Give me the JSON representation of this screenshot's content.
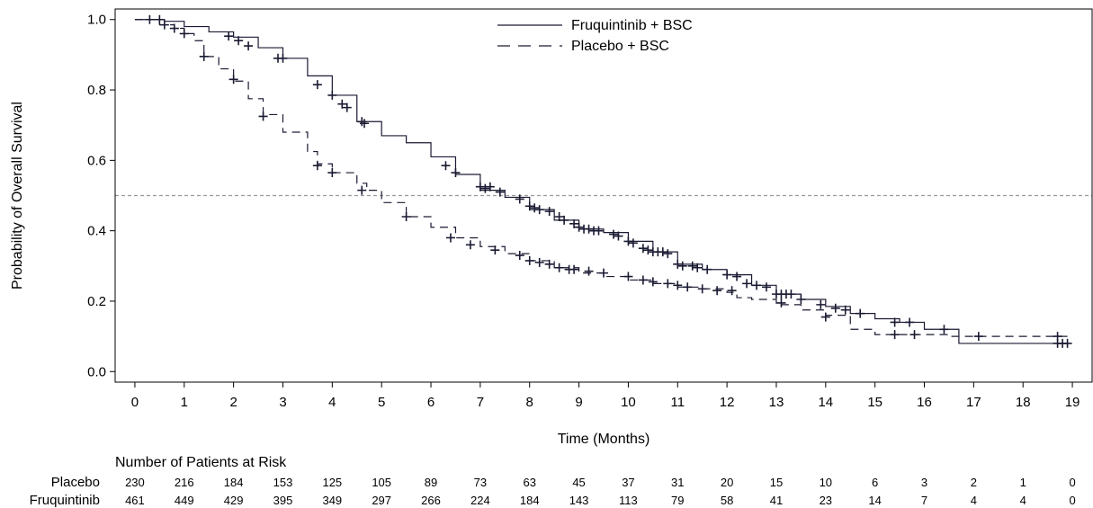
{
  "chart_data": {
    "type": "line",
    "subtype": "kaplan-meier",
    "title": "",
    "xlabel": "Time (Months)",
    "ylabel": "Probability of Overall Survival",
    "xlim": [
      -0.4,
      19.4
    ],
    "ylim": [
      -0.03,
      1.03
    ],
    "xticks": [
      0,
      1,
      2,
      3,
      4,
      5,
      6,
      7,
      8,
      9,
      10,
      11,
      12,
      13,
      14,
      15,
      16,
      17,
      18,
      19
    ],
    "yticks": [
      0.0,
      0.2,
      0.4,
      0.6,
      0.8,
      1.0
    ],
    "ytick_labels": [
      "0.0",
      "0.2",
      "0.4",
      "0.6",
      "0.8",
      "1.0"
    ],
    "reference_line_y": 0.5,
    "legend_position": "top-center",
    "colors": {
      "curve": "#1a1a33",
      "reference": "#999999"
    },
    "series": [
      {
        "name": "Fruquintinib + BSC",
        "line_style": "solid",
        "steps": [
          [
            0,
            1.0
          ],
          [
            0.6,
            0.995
          ],
          [
            1.0,
            0.98
          ],
          [
            1.5,
            0.965
          ],
          [
            2.0,
            0.95
          ],
          [
            2.5,
            0.92
          ],
          [
            3.0,
            0.89
          ],
          [
            3.5,
            0.84
          ],
          [
            4.0,
            0.785
          ],
          [
            4.5,
            0.71
          ],
          [
            5.0,
            0.67
          ],
          [
            5.5,
            0.65
          ],
          [
            6.0,
            0.61
          ],
          [
            6.5,
            0.56
          ],
          [
            7.0,
            0.515
          ],
          [
            7.5,
            0.495
          ],
          [
            8.0,
            0.46
          ],
          [
            8.5,
            0.43
          ],
          [
            9.0,
            0.405
          ],
          [
            9.5,
            0.395
          ],
          [
            10.0,
            0.37
          ],
          [
            10.5,
            0.34
          ],
          [
            11.0,
            0.305
          ],
          [
            11.5,
            0.29
          ],
          [
            12.0,
            0.275
          ],
          [
            12.5,
            0.245
          ],
          [
            13.0,
            0.22
          ],
          [
            13.5,
            0.205
          ],
          [
            14.0,
            0.185
          ],
          [
            14.5,
            0.165
          ],
          [
            15.0,
            0.15
          ],
          [
            15.5,
            0.14
          ],
          [
            16.0,
            0.12
          ],
          [
            16.7,
            0.08
          ],
          [
            18.9,
            0.08
          ]
        ],
        "censored": [
          [
            0.5,
            1.0
          ],
          [
            1.9,
            0.953
          ],
          [
            2.1,
            0.94
          ],
          [
            2.3,
            0.925
          ],
          [
            2.9,
            0.89
          ],
          [
            3.0,
            0.89
          ],
          [
            3.7,
            0.815
          ],
          [
            4.0,
            0.785
          ],
          [
            4.2,
            0.76
          ],
          [
            4.3,
            0.75
          ],
          [
            4.6,
            0.71
          ],
          [
            4.65,
            0.705
          ],
          [
            6.3,
            0.585
          ],
          [
            6.5,
            0.565
          ],
          [
            7.0,
            0.525
          ],
          [
            7.1,
            0.52
          ],
          [
            7.2,
            0.525
          ],
          [
            7.4,
            0.51
          ],
          [
            7.8,
            0.49
          ],
          [
            8.0,
            0.47
          ],
          [
            8.1,
            0.465
          ],
          [
            8.2,
            0.46
          ],
          [
            8.4,
            0.455
          ],
          [
            8.6,
            0.44
          ],
          [
            8.7,
            0.43
          ],
          [
            8.9,
            0.42
          ],
          [
            9.0,
            0.41
          ],
          [
            9.1,
            0.405
          ],
          [
            9.2,
            0.405
          ],
          [
            9.3,
            0.4
          ],
          [
            9.4,
            0.4
          ],
          [
            9.7,
            0.39
          ],
          [
            9.8,
            0.385
          ],
          [
            10.0,
            0.37
          ],
          [
            10.1,
            0.365
          ],
          [
            10.3,
            0.35
          ],
          [
            10.4,
            0.345
          ],
          [
            10.5,
            0.34
          ],
          [
            10.6,
            0.34
          ],
          [
            10.7,
            0.34
          ],
          [
            10.8,
            0.335
          ],
          [
            11.0,
            0.305
          ],
          [
            11.1,
            0.3
          ],
          [
            11.3,
            0.3
          ],
          [
            11.4,
            0.295
          ],
          [
            11.6,
            0.29
          ],
          [
            12.0,
            0.275
          ],
          [
            12.2,
            0.27
          ],
          [
            12.4,
            0.25
          ],
          [
            12.6,
            0.245
          ],
          [
            12.8,
            0.24
          ],
          [
            13.0,
            0.22
          ],
          [
            13.1,
            0.22
          ],
          [
            13.2,
            0.22
          ],
          [
            13.3,
            0.22
          ],
          [
            13.5,
            0.205
          ],
          [
            13.9,
            0.19
          ],
          [
            14.2,
            0.18
          ],
          [
            14.4,
            0.175
          ],
          [
            14.7,
            0.165
          ],
          [
            15.4,
            0.14
          ],
          [
            15.7,
            0.14
          ],
          [
            16.4,
            0.12
          ],
          [
            18.7,
            0.08
          ],
          [
            18.8,
            0.08
          ],
          [
            18.9,
            0.08
          ]
        ]
      },
      {
        "name": "Placebo + BSC",
        "line_style": "dashed",
        "steps": [
          [
            0,
            1.0
          ],
          [
            0.5,
            0.985
          ],
          [
            0.8,
            0.975
          ],
          [
            1.0,
            0.96
          ],
          [
            1.2,
            0.94
          ],
          [
            1.4,
            0.895
          ],
          [
            1.7,
            0.86
          ],
          [
            2.0,
            0.825
          ],
          [
            2.3,
            0.775
          ],
          [
            2.6,
            0.73
          ],
          [
            3.0,
            0.68
          ],
          [
            3.5,
            0.625
          ],
          [
            3.7,
            0.59
          ],
          [
            4.0,
            0.565
          ],
          [
            4.5,
            0.535
          ],
          [
            4.7,
            0.515
          ],
          [
            5.0,
            0.48
          ],
          [
            5.5,
            0.44
          ],
          [
            6.0,
            0.41
          ],
          [
            6.5,
            0.38
          ],
          [
            7.0,
            0.355
          ],
          [
            7.5,
            0.335
          ],
          [
            8.0,
            0.315
          ],
          [
            8.5,
            0.295
          ],
          [
            9.0,
            0.28
          ],
          [
            9.5,
            0.27
          ],
          [
            10.0,
            0.26
          ],
          [
            10.5,
            0.25
          ],
          [
            11.0,
            0.24
          ],
          [
            11.5,
            0.235
          ],
          [
            12.0,
            0.225
          ],
          [
            12.2,
            0.21
          ],
          [
            12.5,
            0.205
          ],
          [
            13.0,
            0.19
          ],
          [
            13.5,
            0.175
          ],
          [
            14.0,
            0.16
          ],
          [
            14.5,
            0.12
          ],
          [
            15.0,
            0.105
          ],
          [
            16.0,
            0.105
          ],
          [
            16.5,
            0.1
          ],
          [
            18.9,
            0.1
          ]
        ],
        "censored": [
          [
            0.3,
            1.0
          ],
          [
            0.6,
            0.985
          ],
          [
            0.8,
            0.975
          ],
          [
            1.0,
            0.96
          ],
          [
            1.4,
            0.895
          ],
          [
            2.0,
            0.83
          ],
          [
            2.6,
            0.725
          ],
          [
            3.7,
            0.585
          ],
          [
            4.0,
            0.565
          ],
          [
            4.6,
            0.515
          ],
          [
            5.5,
            0.44
          ],
          [
            6.4,
            0.38
          ],
          [
            6.8,
            0.36
          ],
          [
            7.3,
            0.345
          ],
          [
            7.8,
            0.33
          ],
          [
            8.0,
            0.315
          ],
          [
            8.2,
            0.31
          ],
          [
            8.4,
            0.305
          ],
          [
            8.6,
            0.295
          ],
          [
            8.8,
            0.29
          ],
          [
            8.9,
            0.29
          ],
          [
            9.2,
            0.285
          ],
          [
            9.5,
            0.28
          ],
          [
            10.0,
            0.27
          ],
          [
            10.3,
            0.26
          ],
          [
            10.5,
            0.255
          ],
          [
            10.8,
            0.25
          ],
          [
            11.0,
            0.245
          ],
          [
            11.2,
            0.24
          ],
          [
            11.5,
            0.235
          ],
          [
            11.8,
            0.23
          ],
          [
            12.1,
            0.23
          ],
          [
            13.1,
            0.195
          ],
          [
            14.0,
            0.155
          ],
          [
            15.4,
            0.105
          ],
          [
            15.8,
            0.105
          ],
          [
            17.1,
            0.1
          ],
          [
            18.7,
            0.1
          ]
        ]
      }
    ],
    "at_risk": {
      "title": "Number of Patients at Risk",
      "times": [
        0,
        1,
        2,
        3,
        4,
        5,
        6,
        7,
        8,
        9,
        10,
        11,
        12,
        13,
        14,
        15,
        16,
        17,
        18,
        19
      ],
      "groups": [
        {
          "name": "Placebo",
          "counts": [
            230,
            216,
            184,
            153,
            125,
            105,
            89,
            73,
            63,
            45,
            37,
            31,
            20,
            15,
            10,
            6,
            3,
            2,
            1,
            0
          ]
        },
        {
          "name": "Fruquintinib",
          "counts": [
            461,
            449,
            429,
            395,
            349,
            297,
            266,
            224,
            184,
            143,
            113,
            79,
            58,
            41,
            23,
            14,
            7,
            4,
            4,
            0
          ]
        }
      ]
    }
  }
}
